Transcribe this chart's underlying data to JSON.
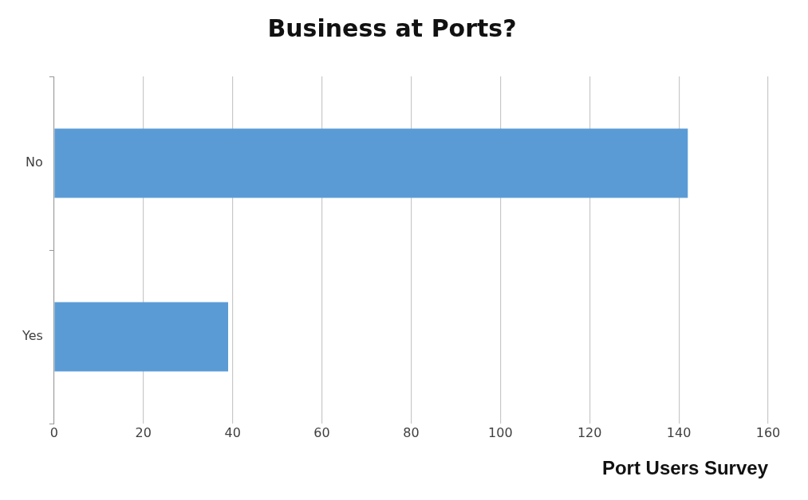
{
  "chart_data": {
    "type": "bar",
    "orientation": "horizontal",
    "title": "Business at Ports?",
    "xlabel": "Port Users Survey",
    "categories": [
      "No",
      "Yes"
    ],
    "values": [
      142,
      39
    ],
    "color": "#5b9bd5",
    "xlim": [
      0,
      160
    ],
    "xticks": [
      0,
      20,
      40,
      60,
      80,
      100,
      120,
      140,
      160
    ],
    "grid": "x",
    "legend": false
  }
}
